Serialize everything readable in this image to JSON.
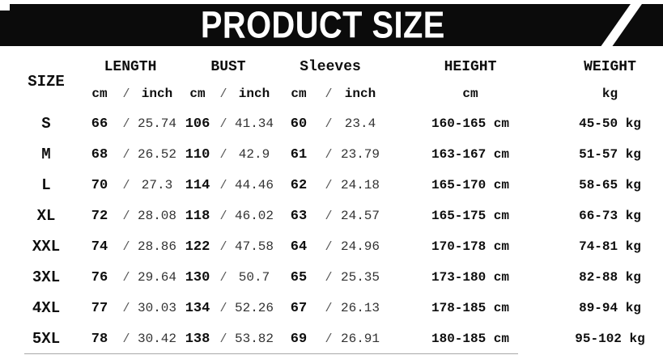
{
  "banner": {
    "title": "PRODUCT SIZE"
  },
  "table": {
    "headers": {
      "size": "SIZE",
      "length": "LENGTH",
      "bust": "BUST",
      "sleeves": "Sleeves",
      "height": "HEIGHT",
      "weight": "WEIGHT",
      "unit_cm": "cm",
      "unit_inch": "inch",
      "unit_kg": "kg",
      "slash": "/"
    },
    "rows": [
      {
        "size": "S",
        "length_cm": "66",
        "length_inch": "25.74",
        "bust_cm": "106",
        "bust_inch": "41.34",
        "sleeve_cm": "60",
        "sleeve_inch": "23.4",
        "height": "160-165 cm",
        "weight": "45-50 kg"
      },
      {
        "size": "M",
        "length_cm": "68",
        "length_inch": "26.52",
        "bust_cm": "110",
        "bust_inch": "42.9",
        "sleeve_cm": "61",
        "sleeve_inch": "23.79",
        "height": "163-167 cm",
        "weight": "51-57 kg"
      },
      {
        "size": "L",
        "length_cm": "70",
        "length_inch": "27.3",
        "bust_cm": "114",
        "bust_inch": "44.46",
        "sleeve_cm": "62",
        "sleeve_inch": "24.18",
        "height": "165-170 cm",
        "weight": "58-65 kg"
      },
      {
        "size": "XL",
        "length_cm": "72",
        "length_inch": "28.08",
        "bust_cm": "118",
        "bust_inch": "46.02",
        "sleeve_cm": "63",
        "sleeve_inch": "24.57",
        "height": "165-175 cm",
        "weight": "66-73 kg"
      },
      {
        "size": "XXL",
        "length_cm": "74",
        "length_inch": "28.86",
        "bust_cm": "122",
        "bust_inch": "47.58",
        "sleeve_cm": "64",
        "sleeve_inch": "24.96",
        "height": "170-178 cm",
        "weight": "74-81 kg"
      },
      {
        "size": "3XL",
        "length_cm": "76",
        "length_inch": "29.64",
        "bust_cm": "130",
        "bust_inch": "50.7",
        "sleeve_cm": "65",
        "sleeve_inch": "25.35",
        "height": "173-180 cm",
        "weight": "82-88 kg"
      },
      {
        "size": "4XL",
        "length_cm": "77",
        "length_inch": "30.03",
        "bust_cm": "134",
        "bust_inch": "52.26",
        "sleeve_cm": "67",
        "sleeve_inch": "26.13",
        "height": "178-185 cm",
        "weight": "89-94 kg"
      },
      {
        "size": "5XL",
        "length_cm": "78",
        "length_inch": "30.42",
        "bust_cm": "138",
        "bust_inch": "53.82",
        "sleeve_cm": "69",
        "sleeve_inch": "26.91",
        "height": "180-185 cm",
        "weight": "95-102 kg"
      }
    ],
    "colors": {
      "banner_bg": "#0b0b0b",
      "banner_text": "#ffffff",
      "text": "#0e0e0e",
      "page_bg": "#ffffff"
    }
  }
}
